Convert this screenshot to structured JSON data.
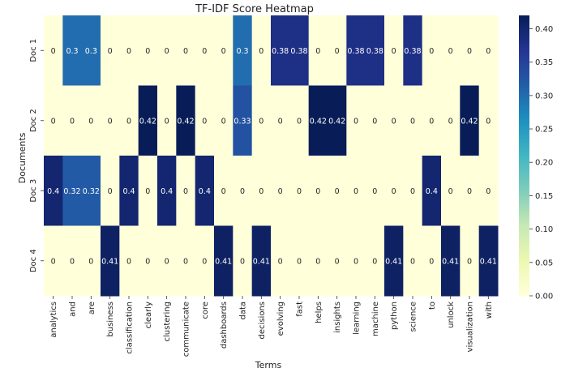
{
  "chart_data": {
    "type": "heatmap",
    "title": "TF-IDF Score Heatmap",
    "xlabel": "Terms",
    "ylabel": "Documents",
    "rows": [
      "Doc 1",
      "Doc 2",
      "Doc 3",
      "Doc 4"
    ],
    "columns": [
      "analytics",
      "and",
      "are",
      "business",
      "classification",
      "clearly",
      "clustering",
      "communicate",
      "core",
      "dashboards",
      "data",
      "decisions",
      "evolving",
      "fast",
      "helps",
      "insights",
      "learning",
      "machine",
      "python",
      "science",
      "to",
      "unlock",
      "visualization",
      "with"
    ],
    "values": [
      [
        0,
        0.3,
        0.3,
        0,
        0,
        0,
        0,
        0,
        0,
        0,
        0.3,
        0,
        0.38,
        0.38,
        0,
        0,
        0.38,
        0.38,
        0,
        0.38,
        0,
        0,
        0,
        0
      ],
      [
        0,
        0,
        0,
        0,
        0,
        0.42,
        0,
        0.42,
        0,
        0,
        0.33,
        0,
        0,
        0,
        0.42,
        0.42,
        0,
        0,
        0,
        0,
        0,
        0,
        0.42,
        0
      ],
      [
        0.4,
        0.32,
        0.32,
        0,
        0.4,
        0,
        0.4,
        0,
        0.4,
        0,
        0,
        0,
        0,
        0,
        0,
        0,
        0,
        0,
        0,
        0,
        0.4,
        0,
        0,
        0
      ],
      [
        0,
        0,
        0,
        0.41,
        0,
        0,
        0,
        0,
        0,
        0.41,
        0,
        0.41,
        0,
        0,
        0,
        0,
        0,
        0,
        0.41,
        0,
        0,
        0.41,
        0,
        0.41
      ]
    ],
    "cell_labels": [
      [
        "0",
        "0.3",
        "0.3",
        "0",
        "0",
        "0",
        "0",
        "0",
        "0",
        "0",
        "0.3",
        "0",
        "0.38",
        "0.38",
        "0",
        "0",
        "0.38",
        "0.38",
        "0",
        "0.38",
        "0",
        "0",
        "0",
        "0"
      ],
      [
        "0",
        "0",
        "0",
        "0",
        "0",
        "0.42",
        "0",
        "0.42",
        "0",
        "0",
        "0.33",
        "0",
        "0",
        "0",
        "0.42",
        "0.42",
        "0",
        "0",
        "0",
        "0",
        "0",
        "0",
        "0.42",
        "0"
      ],
      [
        "0.4",
        "0.32",
        "0.32",
        "0",
        "0.4",
        "0",
        "0.4",
        "0",
        "0.4",
        "0",
        "0",
        "0",
        "0",
        "0",
        "0",
        "0",
        "0",
        "0",
        "0",
        "0",
        "0.4",
        "0",
        "0",
        "0"
      ],
      [
        "0",
        "0",
        "0",
        "0.41",
        "0",
        "0",
        "0",
        "0",
        "0",
        "0.41",
        "0",
        "0.41",
        "0",
        "0",
        "0",
        "0",
        "0",
        "0",
        "0.41",
        "0",
        "0",
        "0.41",
        "0",
        "0.41"
      ]
    ],
    "colormap": "YlGnBu",
    "vmin": 0,
    "vmax": 0.42,
    "colorbar_ticks": [
      0.0,
      0.05,
      0.1,
      0.15,
      0.2,
      0.25,
      0.3,
      0.35,
      0.4
    ],
    "colorbar_tick_labels": [
      "0.00",
      "0.05",
      "0.10",
      "0.15",
      "0.20",
      "0.25",
      "0.30",
      "0.35",
      "0.40"
    ],
    "colorbar_position": "right",
    "grid": false,
    "colors": {
      "low": "#ffffd9",
      "high": "#081d58",
      "text_dark": "#262626",
      "text_light": "#ffffff"
    }
  }
}
